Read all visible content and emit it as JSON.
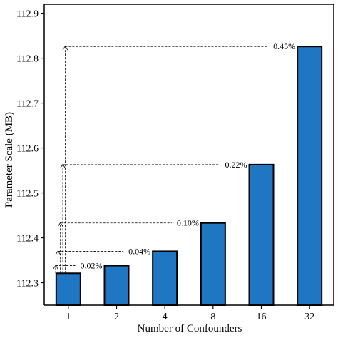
{
  "chart_data": {
    "type": "bar",
    "title": "",
    "xlabel": "Number of Confounders",
    "ylabel": "Parameter Scale (MB)",
    "categories": [
      "1",
      "2",
      "4",
      "8",
      "16",
      "32"
    ],
    "values": [
      112.321,
      112.338,
      112.37,
      112.433,
      112.563,
      112.826
    ],
    "ylim": [
      112.25,
      112.92
    ],
    "yticks": [
      "112.3",
      "112.4",
      "112.5",
      "112.6",
      "112.7",
      "112.8",
      "112.9"
    ],
    "ytick_values": [
      112.3,
      112.4,
      112.5,
      112.6,
      112.7,
      112.8,
      112.9
    ],
    "bar_color": "#1f77c4",
    "grid": false,
    "annotations": [
      {
        "from_category": "1",
        "to_category": "2",
        "label": "0.02%"
      },
      {
        "from_category": "1",
        "to_category": "4",
        "label": "0.04%"
      },
      {
        "from_category": "1",
        "to_category": "8",
        "label": "0.10%"
      },
      {
        "from_category": "1",
        "to_category": "16",
        "label": "0.22%"
      },
      {
        "from_category": "1",
        "to_category": "32",
        "label": "0.45%"
      }
    ]
  }
}
